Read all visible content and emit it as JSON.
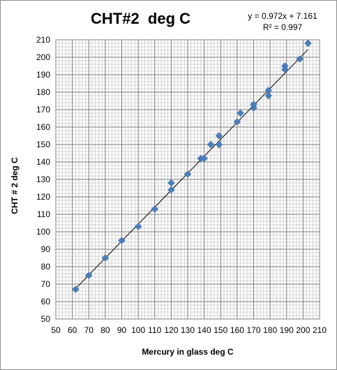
{
  "chart_data": {
    "type": "scatter",
    "title": "CHT#2  deg C",
    "xlabel": "Mercury in glass  deg C",
    "ylabel": "CHT # 2 deg C",
    "xlim": [
      50,
      210
    ],
    "ylim": [
      50,
      210
    ],
    "x_ticks": [
      50,
      60,
      70,
      80,
      90,
      100,
      110,
      120,
      130,
      140,
      150,
      160,
      170,
      180,
      190,
      200,
      210
    ],
    "y_ticks": [
      50,
      60,
      70,
      80,
      90,
      100,
      110,
      120,
      130,
      140,
      150,
      160,
      170,
      180,
      190,
      200,
      210
    ],
    "grid": true,
    "legend": "none",
    "trendline": {
      "type": "linear",
      "slope": 0.972,
      "intercept": 7.161,
      "equation_label": "y = 0.972x + 7.161",
      "r2_label": "R² = 0.997"
    },
    "series": [
      {
        "color": "#4a7ebb",
        "marker": "diamond",
        "points": [
          {
            "x": 62,
            "y": 67
          },
          {
            "x": 70,
            "y": 75
          },
          {
            "x": 80,
            "y": 85
          },
          {
            "x": 90,
            "y": 95
          },
          {
            "x": 100,
            "y": 103
          },
          {
            "x": 110,
            "y": 113
          },
          {
            "x": 120,
            "y": 124
          },
          {
            "x": 120,
            "y": 128
          },
          {
            "x": 130,
            "y": 133
          },
          {
            "x": 138,
            "y": 142
          },
          {
            "x": 140,
            "y": 142
          },
          {
            "x": 144,
            "y": 150
          },
          {
            "x": 149,
            "y": 150
          },
          {
            "x": 149,
            "y": 155
          },
          {
            "x": 160,
            "y": 163
          },
          {
            "x": 162,
            "y": 168
          },
          {
            "x": 170,
            "y": 171
          },
          {
            "x": 170,
            "y": 173
          },
          {
            "x": 179,
            "y": 178
          },
          {
            "x": 179,
            "y": 181
          },
          {
            "x": 189,
            "y": 193
          },
          {
            "x": 189,
            "y": 195
          },
          {
            "x": 198,
            "y": 199
          },
          {
            "x": 203,
            "y": 208
          }
        ]
      }
    ]
  }
}
